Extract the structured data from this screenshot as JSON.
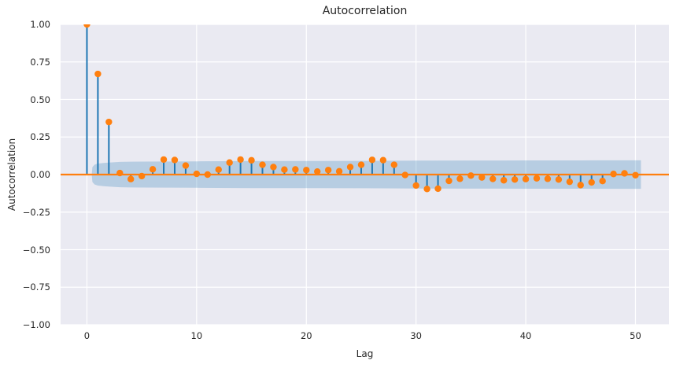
{
  "chart_data": {
    "type": "stem",
    "title": "Autocorrelation",
    "xlabel": "Lag",
    "ylabel": "Autocorrelation",
    "xlim": [
      -2.4,
      53.05
    ],
    "ylim": [
      -1.0,
      1.0
    ],
    "grid": true,
    "legend": "none",
    "x_ticks": [
      0,
      10,
      20,
      30,
      40,
      50
    ],
    "x_tick_labels": [
      "0",
      "10",
      "20",
      "30",
      "40",
      "50"
    ],
    "y_ticks": [
      1.0,
      0.75,
      0.5,
      0.25,
      0.0,
      -0.25,
      -0.5,
      -0.75,
      -1.0
    ],
    "y_tick_labels": [
      "1.00",
      "0.75",
      "0.50",
      "0.25",
      "0.00",
      "−0.25",
      "−0.50",
      "−0.75",
      "−1.00"
    ],
    "lags": [
      0,
      1,
      2,
      3,
      4,
      5,
      6,
      7,
      8,
      9,
      10,
      11,
      12,
      13,
      14,
      15,
      16,
      17,
      18,
      19,
      20,
      21,
      22,
      23,
      24,
      25,
      26,
      27,
      28,
      29,
      30,
      31,
      32,
      33,
      34,
      35,
      36,
      37,
      38,
      39,
      40,
      41,
      42,
      43,
      44,
      45,
      46,
      47,
      48,
      49,
      50
    ],
    "acf": [
      1.0,
      0.67,
      0.35,
      0.01,
      -0.03,
      -0.01,
      0.035,
      0.1,
      0.097,
      0.06,
      0.005,
      0.0,
      0.033,
      0.08,
      0.1,
      0.095,
      0.065,
      0.05,
      0.033,
      0.034,
      0.03,
      0.02,
      0.03,
      0.022,
      0.05,
      0.065,
      0.098,
      0.096,
      0.065,
      -0.003,
      -0.073,
      -0.096,
      -0.094,
      -0.042,
      -0.028,
      -0.007,
      -0.019,
      -0.029,
      -0.038,
      -0.033,
      -0.03,
      -0.025,
      -0.028,
      -0.033,
      -0.048,
      -0.07,
      -0.052,
      -0.043,
      0.004,
      0.008,
      -0.004
    ],
    "confidence_band": {
      "x": [
        0.45,
        0.5,
        0.7,
        1.0,
        1.5,
        2.0,
        3.0,
        4.0,
        5.0,
        10.0,
        15.0,
        20.0,
        25.0,
        30.0,
        35.0,
        40.0,
        45.0,
        50.0,
        50.5
      ],
      "half_width": [
        0.012,
        0.05,
        0.066,
        0.073,
        0.077,
        0.08,
        0.0845,
        0.086,
        0.0865,
        0.088,
        0.09,
        0.0905,
        0.091,
        0.093,
        0.0935,
        0.094,
        0.0945,
        0.095,
        0.095
      ]
    },
    "zero_line": 0.0,
    "colors": {
      "stem": "#1f77b4",
      "marker": "#ff7f0e",
      "zero_line": "#ff7f0e",
      "band_fill": "#1f77b4",
      "band_opacity": 0.25,
      "axes_background": "#eaeaf2",
      "grid": "#ffffff",
      "text": "#262626",
      "figure_background": "#ffffff"
    },
    "marker_radius": 4.2,
    "stem_width": 2,
    "zero_line_width": 2.2
  }
}
